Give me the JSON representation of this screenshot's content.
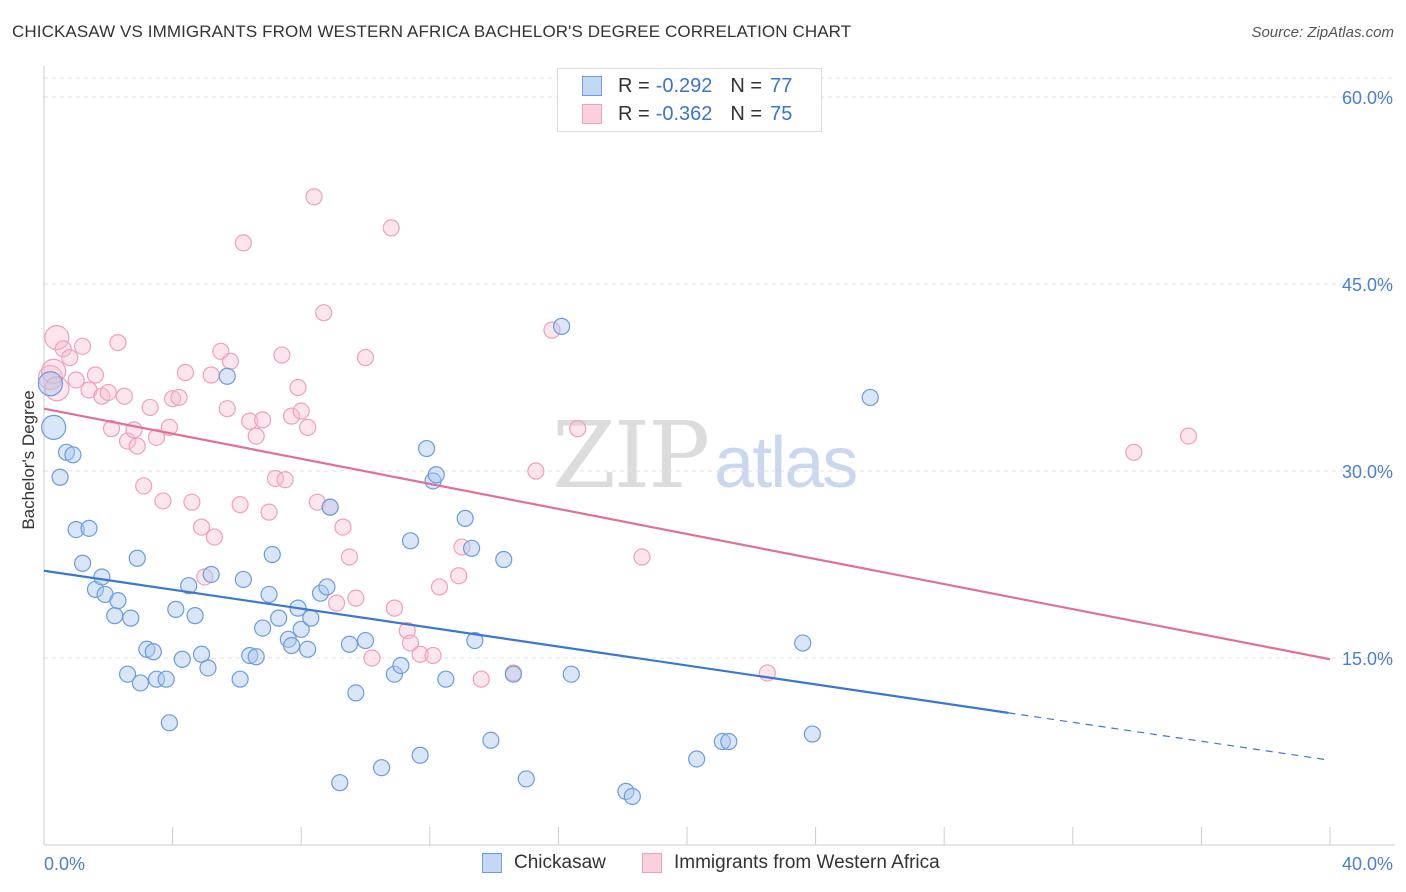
{
  "header": {
    "title": "CHICKASAW VS IMMIGRANTS FROM WESTERN AFRICA BACHELOR'S DEGREE CORRELATION CHART",
    "source": "Source: ZipAtlas.com"
  },
  "watermark": {
    "zip": "ZIP",
    "atlas": "atlas"
  },
  "legend": {
    "rows": [
      {
        "r_label": "R =",
        "r_value": "-0.292",
        "n_label": "N =",
        "n_value": "77"
      },
      {
        "r_label": "R =",
        "r_value": "-0.362",
        "n_label": "N =",
        "n_value": "75"
      }
    ]
  },
  "bottom_legend": {
    "series0": "Chickasaw",
    "series1": "Immigrants from Western Africa"
  },
  "chart_data": {
    "type": "scatter",
    "title": "CHICKASAW VS IMMIGRANTS FROM WESTERN AFRICA BACHELOR'S DEGREE CORRELATION CHART",
    "xlabel": "",
    "ylabel": "Bachelor's Degree",
    "xlim": [
      0,
      40
    ],
    "ylim": [
      0,
      60
    ],
    "x_tick_labels": [
      "0.0%",
      "40.0%"
    ],
    "y_ticks": [
      15,
      30,
      45,
      60
    ],
    "y_tick_labels": [
      "15.0%",
      "30.0%",
      "45.0%",
      "60.0%"
    ],
    "grid": true,
    "colors": {
      "chickasaw": "#6b9be0",
      "immigrants": "#f0a0b8",
      "chickasaw_line": "#3a78d0",
      "immigrants_line": "#e0709a"
    },
    "series": [
      {
        "name": "Chickasaw",
        "color": "#6b9be0",
        "trend": {
          "x0": 0,
          "y0": 22.0,
          "x1": 30,
          "y1": 10.6,
          "dash_to_x": 40,
          "dash_to_y": 6.8
        },
        "points": [
          [
            0.2,
            37.0
          ],
          [
            0.3,
            33.5
          ],
          [
            0.5,
            29.5
          ],
          [
            0.7,
            31.5
          ],
          [
            0.9,
            31.3
          ],
          [
            1.0,
            25.3
          ],
          [
            1.2,
            22.6
          ],
          [
            1.4,
            25.4
          ],
          [
            1.6,
            20.5
          ],
          [
            1.8,
            21.5
          ],
          [
            1.9,
            20.1
          ],
          [
            2.2,
            18.4
          ],
          [
            2.3,
            19.6
          ],
          [
            2.6,
            13.7
          ],
          [
            2.7,
            18.2
          ],
          [
            2.9,
            23.0
          ],
          [
            3.0,
            13.0
          ],
          [
            3.2,
            15.7
          ],
          [
            3.4,
            15.5
          ],
          [
            3.5,
            13.3
          ],
          [
            3.8,
            13.3
          ],
          [
            3.9,
            9.8
          ],
          [
            4.1,
            18.9
          ],
          [
            4.3,
            14.9
          ],
          [
            4.5,
            20.8
          ],
          [
            4.7,
            18.4
          ],
          [
            4.9,
            15.3
          ],
          [
            5.1,
            14.2
          ],
          [
            5.2,
            21.7
          ],
          [
            5.7,
            37.6
          ],
          [
            6.1,
            13.3
          ],
          [
            6.2,
            21.3
          ],
          [
            6.4,
            15.2
          ],
          [
            6.6,
            15.1
          ],
          [
            6.8,
            17.4
          ],
          [
            7.0,
            20.1
          ],
          [
            7.1,
            23.3
          ],
          [
            7.3,
            18.2
          ],
          [
            7.6,
            16.5
          ],
          [
            7.7,
            16.0
          ],
          [
            7.9,
            19.0
          ],
          [
            8.0,
            17.3
          ],
          [
            8.2,
            15.7
          ],
          [
            8.3,
            18.2
          ],
          [
            8.6,
            20.2
          ],
          [
            8.8,
            20.7
          ],
          [
            8.9,
            27.1
          ],
          [
            9.2,
            5.0
          ],
          [
            9.5,
            16.1
          ],
          [
            9.7,
            12.2
          ],
          [
            10.0,
            16.4
          ],
          [
            10.5,
            6.2
          ],
          [
            10.9,
            13.7
          ],
          [
            11.1,
            14.4
          ],
          [
            11.4,
            24.4
          ],
          [
            11.7,
            7.2
          ],
          [
            11.9,
            31.8
          ],
          [
            12.1,
            29.2
          ],
          [
            12.2,
            29.7
          ],
          [
            12.5,
            13.3
          ],
          [
            13.1,
            26.2
          ],
          [
            13.3,
            23.8
          ],
          [
            13.4,
            16.4
          ],
          [
            13.9,
            8.4
          ],
          [
            14.3,
            22.9
          ],
          [
            14.6,
            13.7
          ],
          [
            15.0,
            5.3
          ],
          [
            16.1,
            41.6
          ],
          [
            16.4,
            13.7
          ],
          [
            18.1,
            4.3
          ],
          [
            18.3,
            3.9
          ],
          [
            20.3,
            6.9
          ],
          [
            21.1,
            8.3
          ],
          [
            21.3,
            8.3
          ],
          [
            23.6,
            16.2
          ],
          [
            23.9,
            8.9
          ],
          [
            25.7,
            35.9
          ]
        ]
      },
      {
        "name": "Immigrants from Western Africa",
        "color": "#f0a0b8",
        "trend": {
          "x0": 0,
          "y0": 35.0,
          "x1": 40,
          "y1": 14.9
        },
        "points": [
          [
            0.2,
            37.5
          ],
          [
            0.3,
            38.0
          ],
          [
            0.4,
            40.7
          ],
          [
            0.6,
            39.8
          ],
          [
            0.8,
            39.1
          ],
          [
            1.0,
            37.3
          ],
          [
            1.2,
            40.0
          ],
          [
            1.4,
            36.5
          ],
          [
            1.6,
            37.7
          ],
          [
            1.8,
            36.0
          ],
          [
            2.0,
            36.3
          ],
          [
            2.1,
            33.4
          ],
          [
            2.3,
            40.3
          ],
          [
            2.5,
            36.0
          ],
          [
            2.6,
            32.4
          ],
          [
            2.8,
            33.3
          ],
          [
            2.9,
            32.0
          ],
          [
            3.1,
            28.8
          ],
          [
            3.3,
            35.1
          ],
          [
            3.5,
            32.7
          ],
          [
            3.7,
            27.6
          ],
          [
            3.9,
            33.5
          ],
          [
            4.0,
            35.8
          ],
          [
            4.2,
            35.9
          ],
          [
            4.4,
            37.9
          ],
          [
            4.6,
            27.5
          ],
          [
            4.9,
            25.5
          ],
          [
            5.0,
            21.5
          ],
          [
            5.2,
            37.7
          ],
          [
            5.3,
            24.7
          ],
          [
            5.5,
            39.6
          ],
          [
            5.7,
            35.0
          ],
          [
            5.8,
            38.8
          ],
          [
            6.1,
            27.3
          ],
          [
            6.2,
            48.3
          ],
          [
            6.4,
            34.0
          ],
          [
            6.6,
            32.8
          ],
          [
            6.8,
            34.1
          ],
          [
            7.0,
            26.7
          ],
          [
            7.2,
            29.4
          ],
          [
            7.4,
            39.3
          ],
          [
            7.5,
            29.3
          ],
          [
            7.7,
            34.4
          ],
          [
            7.9,
            36.7
          ],
          [
            8.0,
            34.8
          ],
          [
            8.2,
            33.5
          ],
          [
            8.4,
            52.0
          ],
          [
            8.5,
            27.5
          ],
          [
            8.7,
            42.7
          ],
          [
            8.9,
            27.1
          ],
          [
            9.1,
            19.4
          ],
          [
            9.3,
            25.5
          ],
          [
            9.5,
            23.1
          ],
          [
            9.7,
            19.8
          ],
          [
            10.0,
            39.1
          ],
          [
            10.2,
            15.0
          ],
          [
            10.8,
            49.5
          ],
          [
            10.9,
            19.0
          ],
          [
            11.3,
            17.2
          ],
          [
            11.4,
            16.2
          ],
          [
            11.7,
            15.3
          ],
          [
            12.1,
            15.2
          ],
          [
            12.3,
            20.7
          ],
          [
            12.9,
            21.6
          ],
          [
            13.0,
            23.9
          ],
          [
            13.6,
            13.3
          ],
          [
            14.6,
            13.8
          ],
          [
            15.3,
            30.0
          ],
          [
            15.8,
            41.3
          ],
          [
            16.6,
            33.4
          ],
          [
            18.6,
            23.1
          ],
          [
            22.5,
            13.8
          ],
          [
            33.9,
            31.5
          ],
          [
            35.6,
            32.8
          ],
          [
            0.4,
            36.6
          ]
        ]
      }
    ]
  }
}
